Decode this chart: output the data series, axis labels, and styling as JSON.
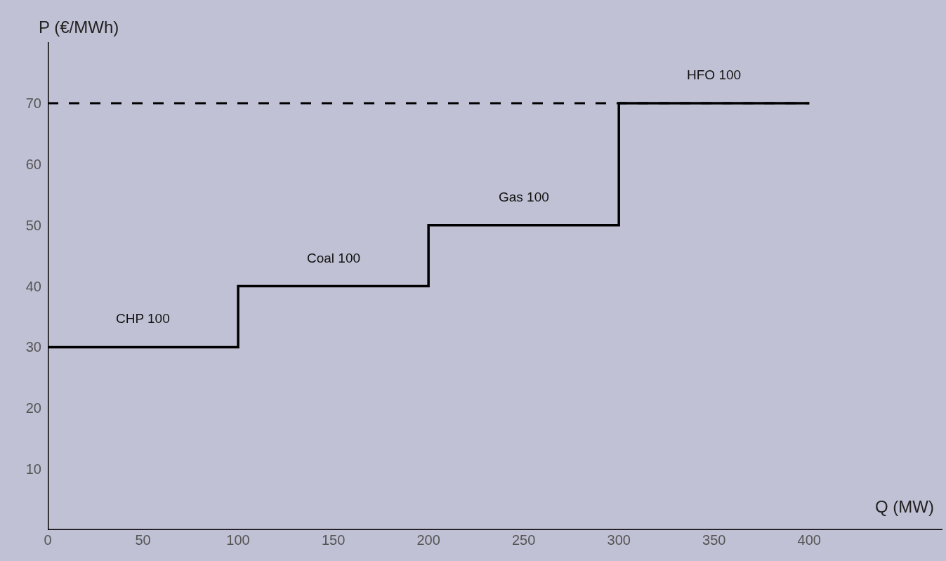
{
  "chart_data": {
    "type": "step",
    "xlabel": "Q (MW)",
    "ylabel": "P (€/MWh)",
    "x": [
      0,
      100,
      200,
      300,
      400
    ],
    "series": [
      {
        "color": "#000000",
        "values": [
          30,
          40,
          50,
          70,
          70
        ]
      }
    ],
    "xlim": [
      0,
      470
    ],
    "ylim": [
      0,
      80
    ],
    "xticks": [
      0,
      50,
      100,
      150,
      200,
      250,
      300,
      350,
      400
    ],
    "yticks": [
      10,
      20,
      30,
      40,
      50,
      60,
      70
    ],
    "ref_lines": [
      {
        "axis": "y",
        "value": 70,
        "color": "#000000",
        "line_style": "dashed"
      }
    ],
    "annotations": [
      "CHP 100",
      "Coal 100",
      "Gas 100",
      "HFO 100"
    ],
    "grid": false,
    "marker": "none",
    "line_style": "solid"
  }
}
